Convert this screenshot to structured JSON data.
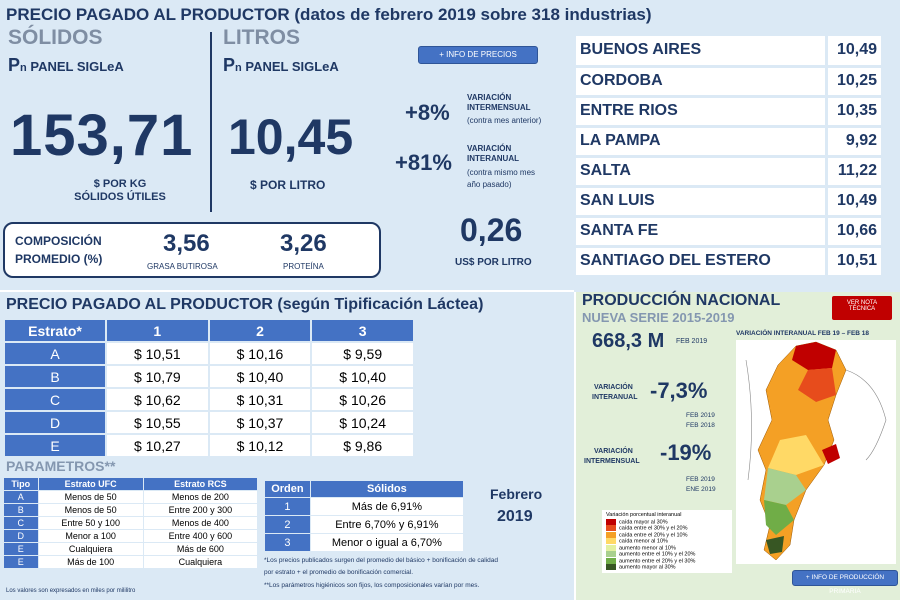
{
  "header": {
    "title": "PRECIO PAGADO AL PRODUCTOR (datos de febrero 2019 sobre 318 industrias)"
  },
  "solidos": {
    "title": "SÓLIDOS",
    "subtitle_p": "P",
    "subtitle_n": "n",
    "subtitle_rest": " PANEL SIGLeA",
    "value": "153,71",
    "unit_line1": "$ POR KG",
    "unit_line2": "SÓLIDOS ÚTILES"
  },
  "litros": {
    "title": "LITROS",
    "subtitle_p": "P",
    "subtitle_n": "n",
    "subtitle_rest": " PANEL SIGLeA",
    "value": "10,45",
    "unit": "$ POR LITRO"
  },
  "info_precios_btn": "+ INFO DE PRECIOS",
  "variacion": {
    "mensual_pct": "+8%",
    "mensual_label1": "VARIACIÓN",
    "mensual_label2": "INTERMENSUAL",
    "mensual_note": "(contra mes anterior)",
    "anual_pct": "+81%",
    "anual_label1": "VARIACIÓN",
    "anual_label2": "INTERANUAL",
    "anual_note1": "(contra mismo mes",
    "anual_note2": "año pasado)",
    "diff_value": "0,26",
    "diff_unit": "US$ POR LITRO"
  },
  "composicion": {
    "label1": "COMPOSICIÓN",
    "label2": "PROMEDIO (%)",
    "grasa_value": "3,56",
    "grasa_label": "GRASA BUTIROSA",
    "proteina_value": "3,26",
    "proteina_label": "PROTEÍNA"
  },
  "provincias": [
    {
      "name": "BUENOS AIRES",
      "value": "10,49"
    },
    {
      "name": "CORDOBA",
      "value": "10,25"
    },
    {
      "name": "ENTRE RIOS",
      "value": "10,35"
    },
    {
      "name": "LA PAMPA",
      "value": "9,92"
    },
    {
      "name": "SALTA",
      "value": "11,22"
    },
    {
      "name": "SAN LUIS",
      "value": "10,49"
    },
    {
      "name": "SANTA FE",
      "value": "10,66"
    },
    {
      "name": "SANTIAGO DEL ESTERO",
      "value": "10,51"
    }
  ],
  "tipificacion": {
    "title": "PRECIO PAGADO AL PRODUCTOR (según Tipificación Láctea)",
    "headers": [
      "Estrato*",
      "1",
      "2",
      "3"
    ],
    "rows": [
      {
        "label": "A",
        "c1": "$ 10,51",
        "c2": "$ 10,16",
        "c3": "$ 9,59"
      },
      {
        "label": "B",
        "c1": "$ 10,79",
        "c2": "$ 10,40",
        "c3": "$ 10,40"
      },
      {
        "label": "C",
        "c1": "$ 10,62",
        "c2": "$ 10,31",
        "c3": "$ 10,26"
      },
      {
        "label": "D",
        "c1": "$ 10,55",
        "c2": "$ 10,37",
        "c3": "$ 10,24"
      },
      {
        "label": "E",
        "c1": "$ 10,27",
        "c2": "$ 10,12",
        "c3": "$ 9,86"
      }
    ]
  },
  "parametros": {
    "title": "PARAMETROS**",
    "headers": [
      "Tipo",
      "Estrato UFC",
      "Estrato RCS"
    ],
    "rows": [
      {
        "tipo": "A",
        "ufc": "Menos de 50",
        "rcs": "Menos de 200"
      },
      {
        "tipo": "B",
        "ufc": "Menos de 50",
        "rcs": "Entre 200 y 300"
      },
      {
        "tipo": "C",
        "ufc": "Entre 50 y 100",
        "rcs": "Menos de 400"
      },
      {
        "tipo": "D",
        "ufc": "Menor a 100",
        "rcs": "Entre 400 y 600"
      },
      {
        "tipo": "E",
        "ufc": "Cualquiera",
        "rcs": "Más de 600"
      },
      {
        "tipo": "E",
        "ufc": "Más de 100",
        "rcs": "Cualquiera"
      }
    ],
    "footnote": "Los valores son expresados en miles por mililitro"
  },
  "orden": {
    "headers": [
      "Orden",
      "Sólidos"
    ],
    "rows": [
      {
        "orden": "1",
        "solidos": "Más de 6,91%"
      },
      {
        "orden": "2",
        "solidos": "Entre 6,70% y 6,91%"
      },
      {
        "orden": "3",
        "solidos": "Menor o igual a 6,70%"
      }
    ]
  },
  "fecha": {
    "line1": "Febrero",
    "line2": "2019"
  },
  "notas": {
    "n1": "*Los precios publicados surgen del promedio del básico + bonificación de calidad",
    "n2": "por estrato + el promedio de bonificación comercial.",
    "n3": "**Los parámetros higiénicos son fijos, los composicionales varían por mes."
  },
  "produccion": {
    "title": "PRODUCCIÓN NACIONAL",
    "subtitle": "NUEVA SERIE 2015-2019",
    "nota_btn1": "VER NOTA",
    "nota_btn2": "TÉCNICA",
    "total": "668,3 M",
    "total_date": "FEB 2019",
    "map_title": "VARIACIÓN INTERANUAL FEB 19 – FEB 18",
    "var_anual_label1": "VARIACIÓN",
    "var_anual_label2": "INTERANUAL",
    "var_anual_value": "-7,3%",
    "var_anual_d1": "FEB 2019",
    "var_anual_d2": "FEB 2018",
    "var_mensual_label1": "VARIACIÓN",
    "var_mensual_label2": "INTERMENSUAL",
    "var_mensual_value": "-19%",
    "var_mensual_d1": "FEB 2019",
    "var_mensual_d2": "ENE 2019",
    "legend_title": "Variación porcentual interanual",
    "legend": [
      {
        "label": "caída mayor al 30%",
        "color": "#c00000"
      },
      {
        "label": "caída entre el 30% y el 20%",
        "color": "#e74c1c"
      },
      {
        "label": "caída entre el 20% y el 10%",
        "color": "#f4a025"
      },
      {
        "label": "caída menor al 10%",
        "color": "#ffd966"
      },
      {
        "label": "aumento menor al 10%",
        "color": "#e2f0a0"
      },
      {
        "label": "aumento entre el 10% y el 20%",
        "color": "#a9d08e"
      },
      {
        "label": "aumento entre el 20% y el 30%",
        "color": "#70ad47"
      },
      {
        "label": "aumento mayor al 30%",
        "color": "#375623"
      }
    ],
    "info_btn": "+ INFO DE PRODUCCIÓN PRIMARIA"
  }
}
